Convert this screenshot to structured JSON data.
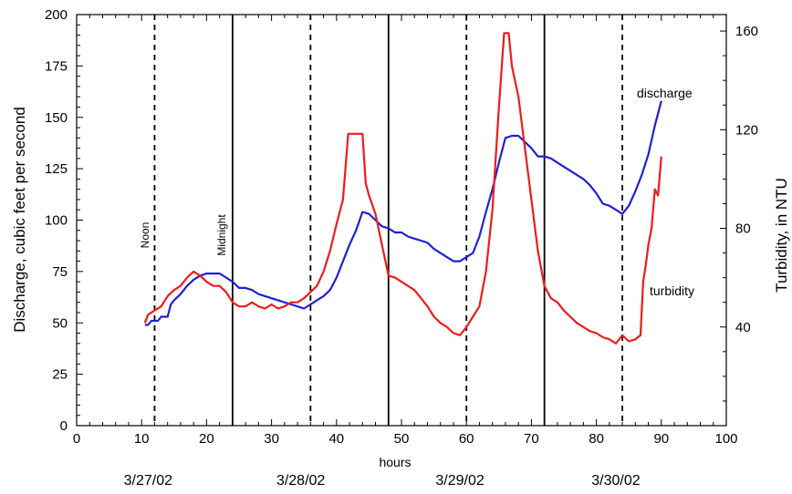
{
  "chart_data": {
    "type": "line",
    "xlabel": "hours",
    "ylabel_left": "Discharge, cubic feet per second",
    "ylabel_right": "Turbidity, in NTU",
    "xlim": [
      0,
      100
    ],
    "ylim_left": [
      0,
      200
    ],
    "ylim_right": [
      0,
      166.67
    ],
    "x_ticks": [
      0,
      10,
      20,
      30,
      40,
      50,
      60,
      70,
      80,
      90,
      100
    ],
    "y_ticks_left": [
      0,
      25,
      50,
      75,
      100,
      125,
      150,
      175,
      200
    ],
    "y_ticks_right": [
      40,
      80,
      120,
      160
    ],
    "grid": false,
    "dates": [
      {
        "label": "3/27/02",
        "x": 11
      },
      {
        "label": "3/28/02",
        "x": 34.5
      },
      {
        "label": "3/29/02",
        "x": 59
      },
      {
        "label": "3/30/02",
        "x": 83
      }
    ],
    "vlines_dashed": [
      12,
      36,
      60,
      84
    ],
    "vlines_solid": [
      24,
      48,
      72
    ],
    "annotations": {
      "noon": {
        "text": "Noon",
        "x": 11.2,
        "y": 92
      },
      "midnight": {
        "text": "Midnight",
        "x": 23.2,
        "y": 85
      },
      "discharge": {
        "text": "discharge",
        "x": 86.8,
        "y": 164
      },
      "turbidity": {
        "text": "turbidity",
        "x": 87.3,
        "y": 65
      }
    },
    "series": [
      {
        "name": "discharge",
        "color": "#1f1fd6",
        "axis": "left",
        "points": [
          [
            10.5,
            49
          ],
          [
            11,
            49
          ],
          [
            11.5,
            51
          ],
          [
            12.5,
            51
          ],
          [
            13,
            53
          ],
          [
            14,
            53
          ],
          [
            14.5,
            59
          ],
          [
            15,
            61
          ],
          [
            16,
            64
          ],
          [
            17,
            68
          ],
          [
            18,
            71
          ],
          [
            19,
            73
          ],
          [
            20,
            74
          ],
          [
            21,
            74
          ],
          [
            22,
            74
          ],
          [
            23,
            72
          ],
          [
            24,
            70
          ],
          [
            25,
            67
          ],
          [
            26,
            67
          ],
          [
            27,
            66
          ],
          [
            28,
            64
          ],
          [
            29,
            63
          ],
          [
            30,
            62
          ],
          [
            31,
            61
          ],
          [
            32,
            60
          ],
          [
            33,
            59
          ],
          [
            34,
            58
          ],
          [
            35,
            57
          ],
          [
            36,
            59
          ],
          [
            37,
            61
          ],
          [
            38,
            63
          ],
          [
            39,
            66
          ],
          [
            40,
            72
          ],
          [
            41,
            80
          ],
          [
            42,
            88
          ],
          [
            43,
            95
          ],
          [
            44,
            104
          ],
          [
            45,
            103
          ],
          [
            46,
            100
          ],
          [
            47,
            97
          ],
          [
            48,
            96
          ],
          [
            49,
            94
          ],
          [
            50,
            94
          ],
          [
            51,
            92
          ],
          [
            52,
            91
          ],
          [
            53,
            90
          ],
          [
            54,
            89
          ],
          [
            55,
            86
          ],
          [
            56,
            84
          ],
          [
            57,
            82
          ],
          [
            58,
            80
          ],
          [
            59,
            80
          ],
          [
            60,
            82
          ],
          [
            61,
            84
          ],
          [
            62,
            92
          ],
          [
            63,
            104
          ],
          [
            64,
            115
          ],
          [
            65,
            128
          ],
          [
            66,
            140
          ],
          [
            67,
            141
          ],
          [
            68,
            141
          ],
          [
            69,
            138
          ],
          [
            70,
            135
          ],
          [
            71,
            131
          ],
          [
            72,
            131
          ],
          [
            73,
            130
          ],
          [
            74,
            128
          ],
          [
            75,
            126
          ],
          [
            76,
            124
          ],
          [
            77,
            122
          ],
          [
            78,
            120
          ],
          [
            79,
            117
          ],
          [
            80,
            113
          ],
          [
            81,
            108
          ],
          [
            82,
            107
          ],
          [
            83,
            105
          ],
          [
            84,
            103
          ],
          [
            85,
            107
          ],
          [
            86,
            114
          ],
          [
            87,
            122
          ],
          [
            88,
            132
          ],
          [
            89,
            146
          ],
          [
            90,
            158
          ]
        ]
      },
      {
        "name": "turbidity",
        "color": "#ee1b1b",
        "axis": "left",
        "points": [
          [
            10.5,
            50
          ],
          [
            11,
            54
          ],
          [
            12,
            56
          ],
          [
            13,
            58
          ],
          [
            14,
            63
          ],
          [
            15,
            66
          ],
          [
            16,
            68
          ],
          [
            17,
            72
          ],
          [
            18,
            75
          ],
          [
            19,
            73
          ],
          [
            20,
            70
          ],
          [
            21,
            68
          ],
          [
            22,
            68
          ],
          [
            23,
            65
          ],
          [
            24,
            60
          ],
          [
            25,
            58
          ],
          [
            26,
            58
          ],
          [
            27,
            60
          ],
          [
            28,
            58
          ],
          [
            29,
            57
          ],
          [
            30,
            59
          ],
          [
            31,
            57
          ],
          [
            32,
            58
          ],
          [
            33,
            60
          ],
          [
            34,
            60
          ],
          [
            35,
            62
          ],
          [
            36,
            65
          ],
          [
            37,
            68
          ],
          [
            38,
            75
          ],
          [
            39,
            85
          ],
          [
            40,
            98
          ],
          [
            41,
            110
          ],
          [
            41.8,
            142
          ],
          [
            43,
            142
          ],
          [
            44,
            142
          ],
          [
            44.5,
            118
          ],
          [
            45,
            112
          ],
          [
            46,
            103
          ],
          [
            47,
            88
          ],
          [
            48,
            73
          ],
          [
            49,
            72
          ],
          [
            50,
            70
          ],
          [
            51,
            68
          ],
          [
            52,
            66
          ],
          [
            53,
            62
          ],
          [
            54,
            58
          ],
          [
            55,
            53
          ],
          [
            56,
            50
          ],
          [
            57,
            48
          ],
          [
            58,
            45
          ],
          [
            59,
            44
          ],
          [
            60,
            48
          ],
          [
            61,
            53
          ],
          [
            62,
            58
          ],
          [
            63,
            75
          ],
          [
            64,
            105
          ],
          [
            65,
            155
          ],
          [
            65.8,
            191
          ],
          [
            66.5,
            191
          ],
          [
            67,
            175
          ],
          [
            68,
            160
          ],
          [
            69,
            135
          ],
          [
            70,
            110
          ],
          [
            71,
            85
          ],
          [
            72,
            68
          ],
          [
            73,
            62
          ],
          [
            74,
            60
          ],
          [
            75,
            56
          ],
          [
            76,
            53
          ],
          [
            77,
            50
          ],
          [
            78,
            48
          ],
          [
            79,
            46
          ],
          [
            80,
            45
          ],
          [
            81,
            43
          ],
          [
            82,
            42
          ],
          [
            83,
            40
          ],
          [
            84,
            44
          ],
          [
            85,
            41
          ],
          [
            86,
            42
          ],
          [
            86.8,
            44
          ],
          [
            87.2,
            70
          ],
          [
            87.6,
            78
          ],
          [
            88,
            88
          ],
          [
            88.5,
            96
          ],
          [
            89,
            115
          ],
          [
            89.5,
            112
          ],
          [
            90,
            131
          ]
        ]
      }
    ]
  }
}
